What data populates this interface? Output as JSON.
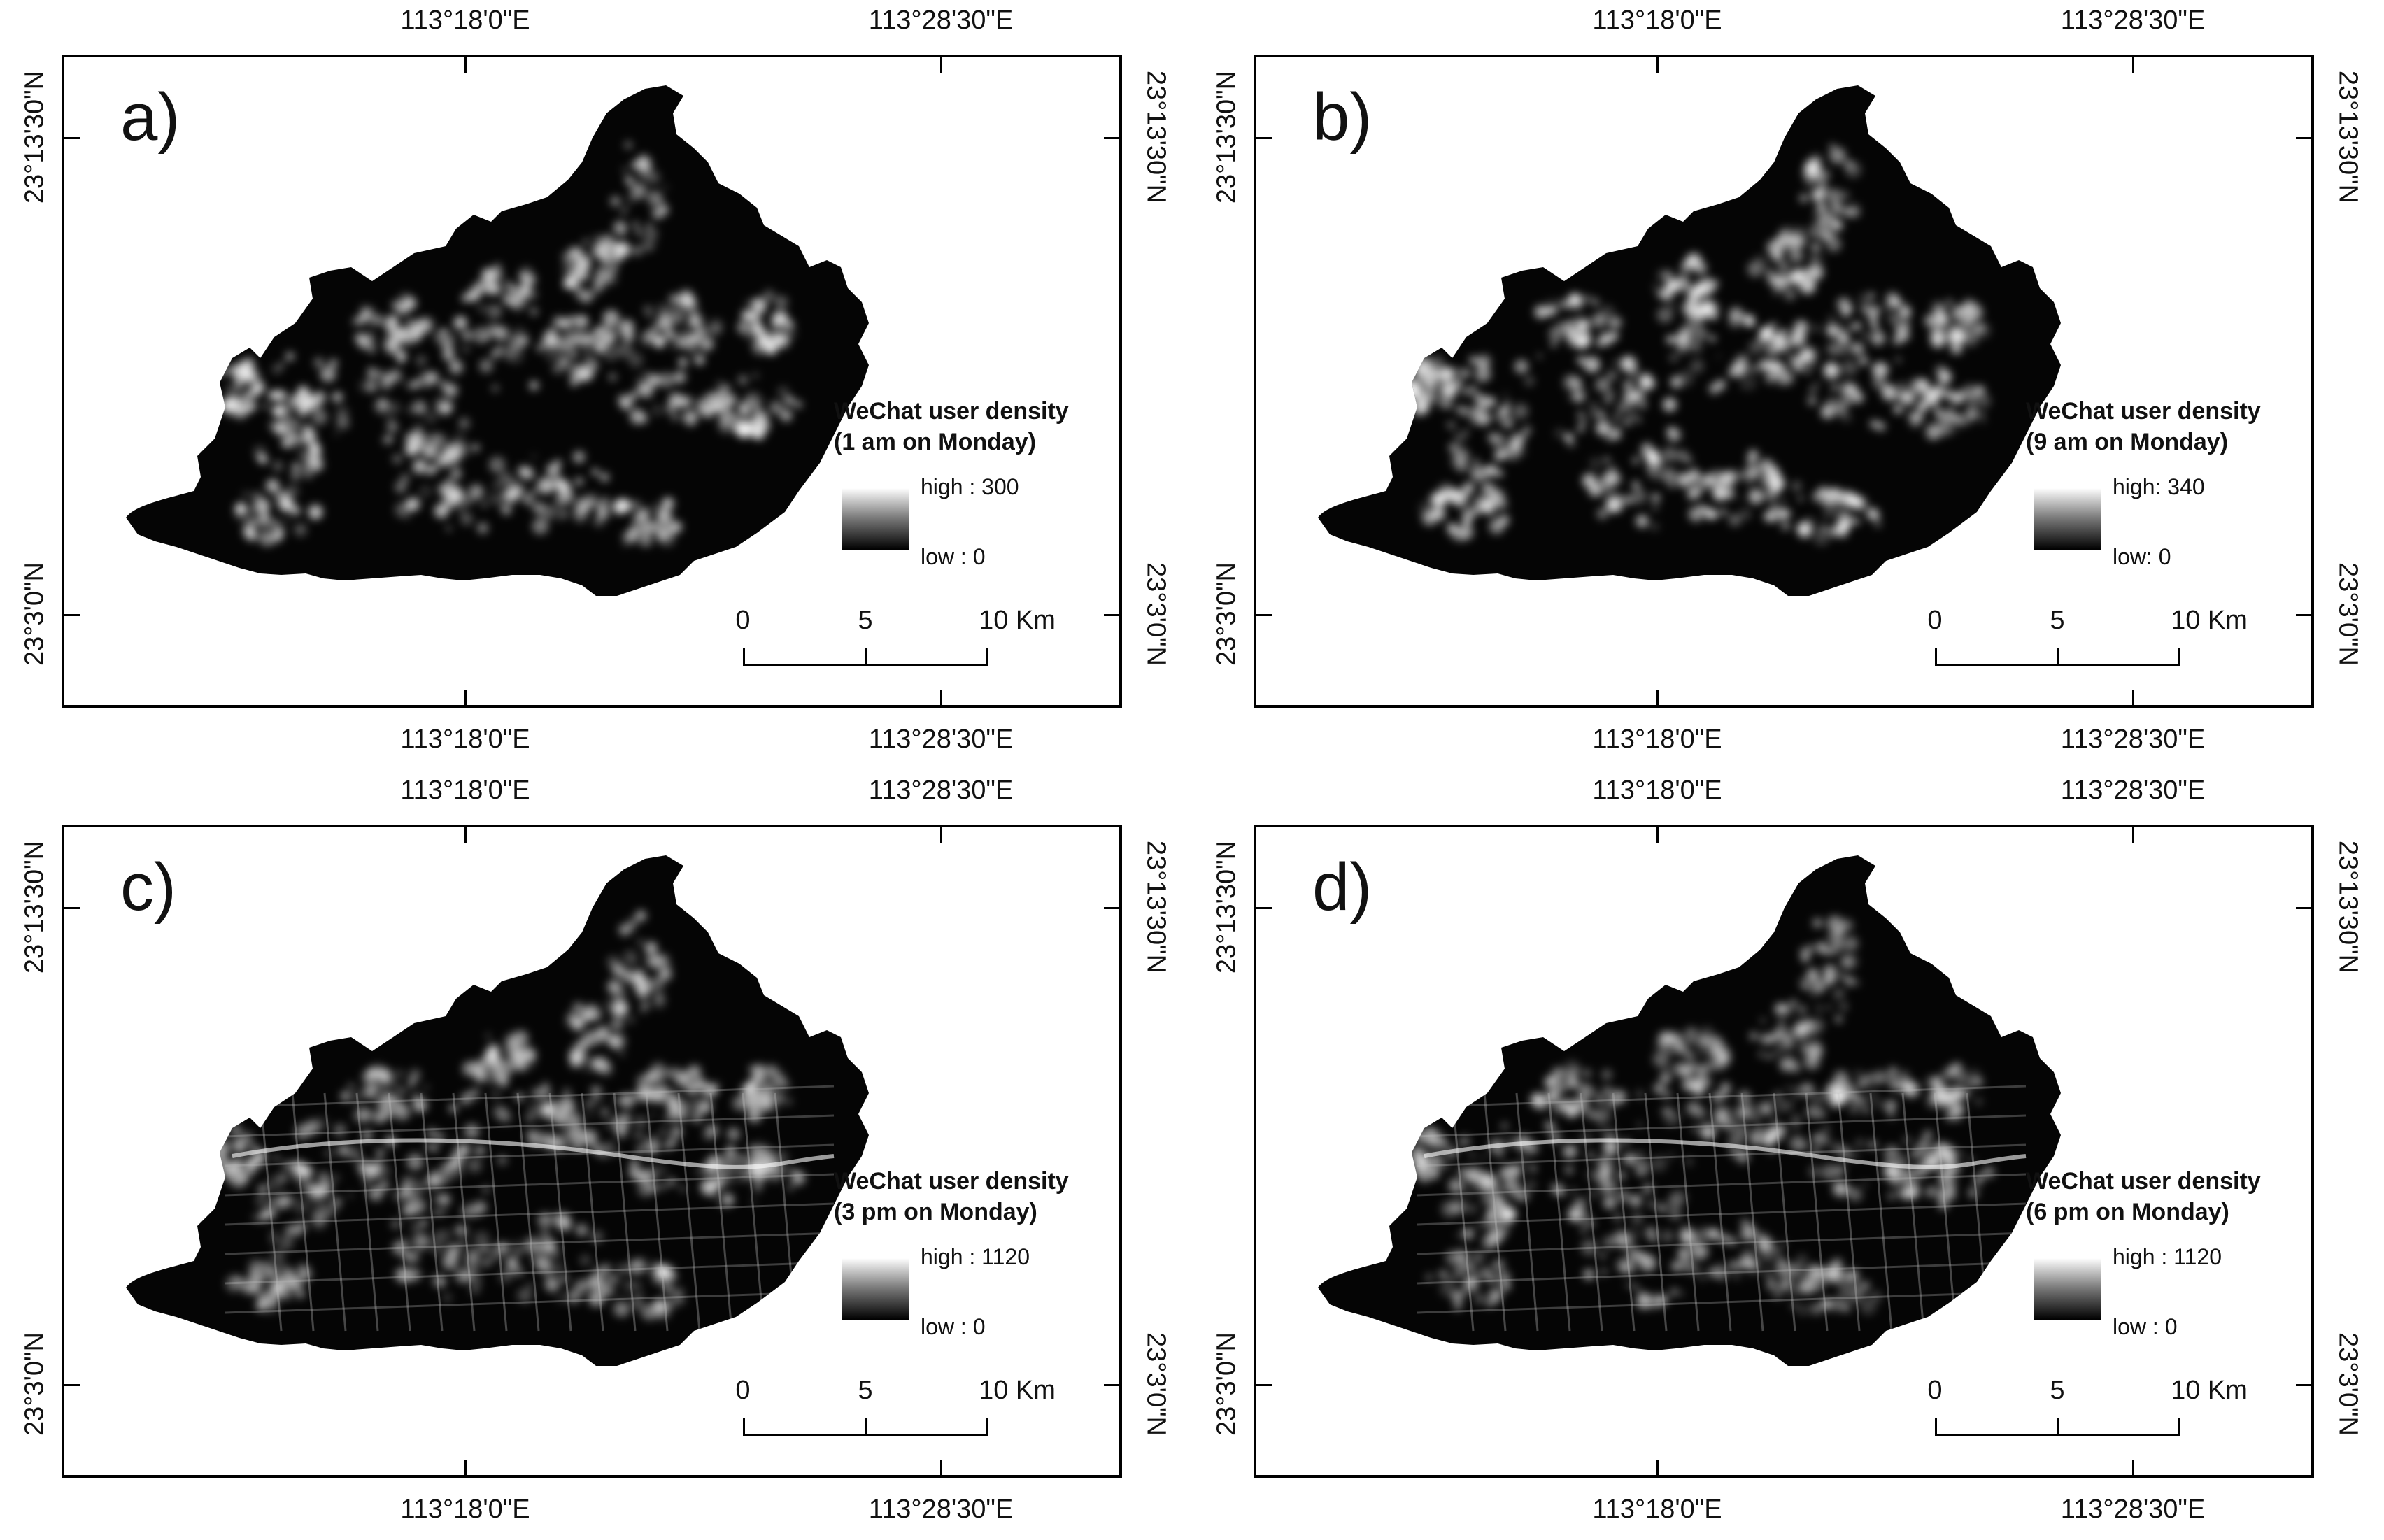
{
  "lon_labels": [
    "113°18'0\"E",
    "113°28'30\"E"
  ],
  "lat_labels": [
    "23°13'30\"N",
    "23°3'0\"N"
  ],
  "panels": [
    {
      "letter": "a)",
      "legend_title_1": "WeChat user density",
      "legend_title_2": "(1 am on Monday)",
      "legend_high": "high : 300",
      "legend_low": "low : 0",
      "density_max": 300,
      "scale": {
        "zero": "0",
        "mid": "5",
        "end": "10 Km"
      }
    },
    {
      "letter": "b)",
      "legend_title_1": "WeChat user density",
      "legend_title_2": "(9 am on Monday)",
      "legend_high": "high: 340",
      "legend_low": "low: 0",
      "density_max": 340,
      "scale": {
        "zero": "0",
        "mid": "5",
        "end": "10 Km"
      }
    },
    {
      "letter": "c)",
      "legend_title_1": "WeChat user density",
      "legend_title_2": "(3 pm on Monday)",
      "legend_high": "high : 1120",
      "legend_low": "low : 0",
      "density_max": 1120,
      "scale": {
        "zero": "0",
        "mid": "5",
        "end": "10 Km"
      }
    },
    {
      "letter": "d)",
      "legend_title_1": "WeChat user density",
      "legend_title_2": "(6 pm on Monday)",
      "legend_high": "high : 1120",
      "legend_low": "low : 0",
      "density_max": 1120,
      "scale": {
        "zero": "0",
        "mid": "5",
        "end": "10 Km"
      }
    }
  ],
  "colors": {
    "region_fill": "#050505",
    "hotspot": "#ffffff",
    "frame": "#000000"
  }
}
